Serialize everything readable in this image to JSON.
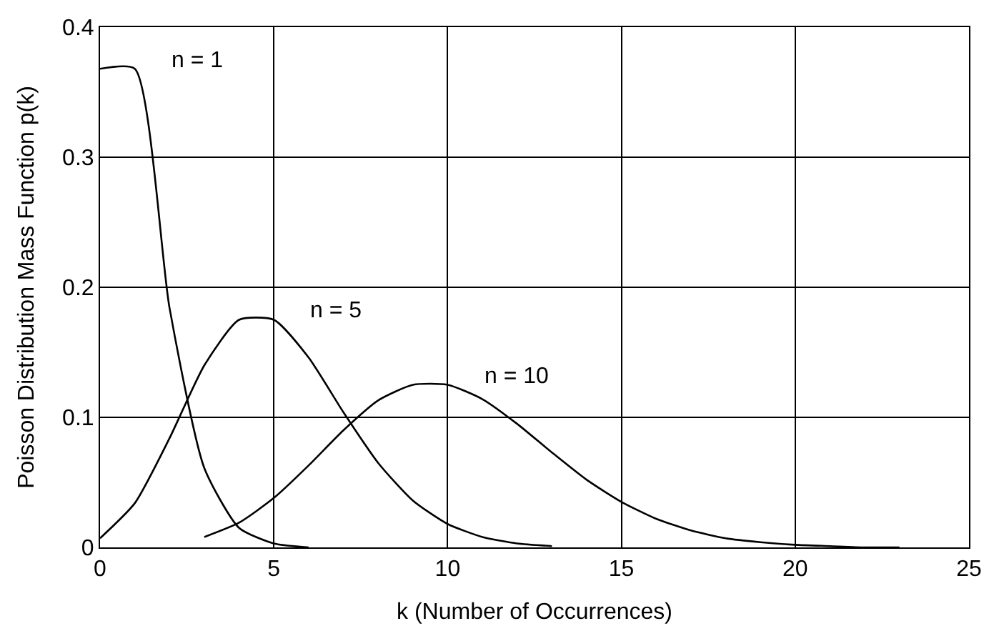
{
  "chart_data": {
    "type": "line",
    "xlabel": "k (Number of Occurrences)",
    "ylabel": "Poisson Distribution Mass Function p(k)",
    "xlim": [
      0,
      25
    ],
    "xticks": [
      0,
      5,
      10,
      15,
      20,
      25
    ],
    "ylim": [
      0,
      0.4
    ],
    "yticks": [
      0,
      0.1,
      0.2,
      0.3,
      0.4
    ],
    "grid": true,
    "marker": "none",
    "line_style": "solid",
    "series": [
      {
        "name": "n = 1",
        "color": "#000000",
        "x": [
          0,
          1,
          2,
          3,
          4,
          5,
          6
        ],
        "values": [
          0.368,
          0.368,
          0.184,
          0.061,
          0.015,
          0.003,
          0
        ]
      },
      {
        "name": "n = 5",
        "color": "#000000",
        "x": [
          0,
          1,
          2,
          3,
          4,
          5,
          6,
          7,
          8,
          9,
          10,
          11,
          12,
          13
        ],
        "values": [
          0.007,
          0.034,
          0.084,
          0.14,
          0.175,
          0.175,
          0.146,
          0.104,
          0.065,
          0.036,
          0.018,
          0.008,
          0.003,
          0.001
        ]
      },
      {
        "name": "n = 10",
        "color": "#000000",
        "x": [
          3,
          4,
          5,
          6,
          7,
          8,
          9,
          10,
          11,
          12,
          13,
          14,
          15,
          16,
          17,
          18,
          19,
          20,
          21,
          22,
          23
        ],
        "values": [
          0.008,
          0.019,
          0.038,
          0.063,
          0.09,
          0.113,
          0.125,
          0.125,
          0.114,
          0.095,
          0.073,
          0.052,
          0.035,
          0.022,
          0.013,
          0.007,
          0.004,
          0.002,
          0.001,
          0,
          0
        ]
      }
    ]
  }
}
